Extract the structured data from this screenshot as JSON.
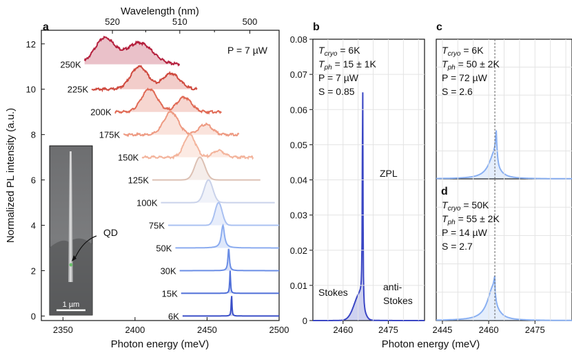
{
  "panel_labels": {
    "a": "a",
    "b": "b",
    "c": "c",
    "d": "d"
  },
  "axis_titles": {
    "a_x": "Photon energy (meV)",
    "a_x_top": "Wavelength (nm)",
    "a_y": "Normalized PL intensity (a.u.)",
    "b_x": "Photon energy (meV)"
  },
  "inset": {
    "qd_label": "QD",
    "scale_bar_label": "1 µm"
  },
  "colors": {
    "250K": "#b5213e",
    "225K": "#cf4a3f",
    "200K": "#e06a55",
    "175K": "#ee9a82",
    "150K": "#f3b49c",
    "125K": "#dcc0b3",
    "100K": "#c9d2ea",
    "75K": "#a9c0f1",
    "50K": "#8aabef",
    "30K": "#6a8de5",
    "15K": "#4e6ed8",
    "6K": "#3a4fc8",
    "b_line": "#3a46c4",
    "c_line": "#8ab0f2",
    "d_line": "#8ab0f2"
  },
  "annotations": {
    "a": {
      "power": "P = 7 µW"
    },
    "b": {
      "t_cryo": "T_cryo = 6K",
      "t_ph": "T_ph = 15 ± 1K",
      "p": "P = 7 µW",
      "s": "S = 0.85",
      "zpl": "ZPL",
      "stokes": "Stokes",
      "anti_stokes_1": "anti-",
      "anti_stokes_2": "Stokes"
    },
    "c": {
      "t_cryo": "T_cryo = 6K",
      "t_ph": "T_ph = 50 ± 2K",
      "p": "P = 72 µW",
      "s": "S = 2.6"
    },
    "d": {
      "t_cryo": "T_cryo = 50K",
      "t_ph": "T_ph = 55 ± 2K",
      "p": "P = 14 µW",
      "s": "S = 2.7"
    }
  },
  "chart_data": [
    {
      "panel": "a",
      "type": "line",
      "xlabel": "Photon energy (meV)",
      "ylabel": "Normalized PL intensity (a.u.)",
      "xlim": [
        2335,
        2500
      ],
      "ylim": [
        -0.2,
        12.6
      ],
      "xticks": [
        2350,
        2400,
        2450,
        2500
      ],
      "yticks": [
        0,
        2,
        4,
        6,
        8,
        10,
        12
      ],
      "top_axis": {
        "label": "Wavelength (nm)",
        "ticks": [
          520,
          510,
          500
        ],
        "minor_ticks": [
          515,
          505
        ]
      },
      "series": [
        {
          "name": "250K",
          "baseline": 11.1,
          "x_range": [
            2365,
            2431
          ],
          "peaks": [
            [
              2379,
              1.15,
              7
            ],
            [
              2403,
              0.95,
              9
            ]
          ]
        },
        {
          "name": "225K",
          "baseline": 10.0,
          "x_range": [
            2370,
            2443
          ],
          "peaks": [
            [
              2403,
              1.0,
              6
            ],
            [
              2425,
              0.7,
              6
            ]
          ]
        },
        {
          "name": "200K",
          "baseline": 9.0,
          "x_range": [
            2386,
            2460
          ],
          "peaks": [
            [
              2410,
              1.0,
              5.5
            ],
            [
              2434,
              0.65,
              5
            ]
          ]
        },
        {
          "name": "175K",
          "baseline": 8.0,
          "x_range": [
            2392,
            2472
          ],
          "peaks": [
            [
              2425,
              1.0,
              5
            ],
            [
              2449,
              0.45,
              4.5
            ]
          ]
        },
        {
          "name": "150K",
          "baseline": 7.0,
          "x_range": [
            2405,
            2482
          ],
          "peaks": [
            [
              2438,
              1.0,
              4
            ],
            [
              2458,
              0.3,
              4
            ]
          ]
        },
        {
          "name": "125K",
          "baseline": 6.0,
          "x_range": [
            2412,
            2487
          ],
          "peaks": [
            [
              2445,
              1.0,
              3.5
            ]
          ]
        },
        {
          "name": "100K",
          "baseline": 5.0,
          "x_range": [
            2418,
            2497
          ],
          "peaks": [
            [
              2451,
              1.0,
              3
            ]
          ]
        },
        {
          "name": "75K",
          "baseline": 4.0,
          "x_range": [
            2423,
            2500
          ],
          "peaks": [
            [
              2458,
              1.0,
              2.5
            ]
          ]
        },
        {
          "name": "50K",
          "baseline": 3.0,
          "x_range": [
            2428,
            2500
          ],
          "peaks": [
            [
              2461,
              1.0,
              1.3
            ]
          ]
        },
        {
          "name": "30K",
          "baseline": 2.0,
          "x_range": [
            2431,
            2500
          ],
          "peaks": [
            [
              2465,
              1.0,
              0.6
            ]
          ]
        },
        {
          "name": "15K",
          "baseline": 1.0,
          "x_range": [
            2432,
            2500
          ],
          "peaks": [
            [
              2466,
              1.0,
              0.35
            ]
          ]
        },
        {
          "name": "6K",
          "baseline": 0.0,
          "x_range": [
            2433,
            2500
          ],
          "peaks": [
            [
              2467,
              1.0,
              0.3
            ]
          ]
        }
      ]
    },
    {
      "panel": "b",
      "type": "area",
      "xlabel": "Photon energy (meV)",
      "xlim": [
        2450,
        2487
      ],
      "ylim": [
        0,
        0.08
      ],
      "xticks": [
        2460,
        2475
      ],
      "yticks": [
        0,
        0.01,
        0.02,
        0.03,
        0.04,
        0.05,
        0.06,
        0.07,
        0.08
      ],
      "series": [
        {
          "name": "T_cryo = 6K",
          "zpl_energy": 2466.5,
          "zpl_peak": 0.066,
          "sideband_peak": 0.0075
        }
      ]
    },
    {
      "panel": "c",
      "type": "area",
      "xlim": [
        2443,
        2487
      ],
      "ylim": [
        0,
        1
      ],
      "xticks": [],
      "vline": 2462,
      "series": [
        {
          "name": "T_cryo = 6K",
          "zpl_energy": 2462.5,
          "zpl_peak": 0.36,
          "broad_peak": 0.18
        }
      ]
    },
    {
      "panel": "d",
      "type": "area",
      "xlim": [
        2443,
        2487
      ],
      "ylim": [
        0,
        1
      ],
      "xticks": [
        2445,
        2460,
        2475
      ],
      "vline": 2462,
      "series": [
        {
          "name": "T_cryo = 50K",
          "zpl_energy": 2462,
          "zpl_peak": 0.33,
          "broad_peak": 0.23
        }
      ]
    }
  ]
}
